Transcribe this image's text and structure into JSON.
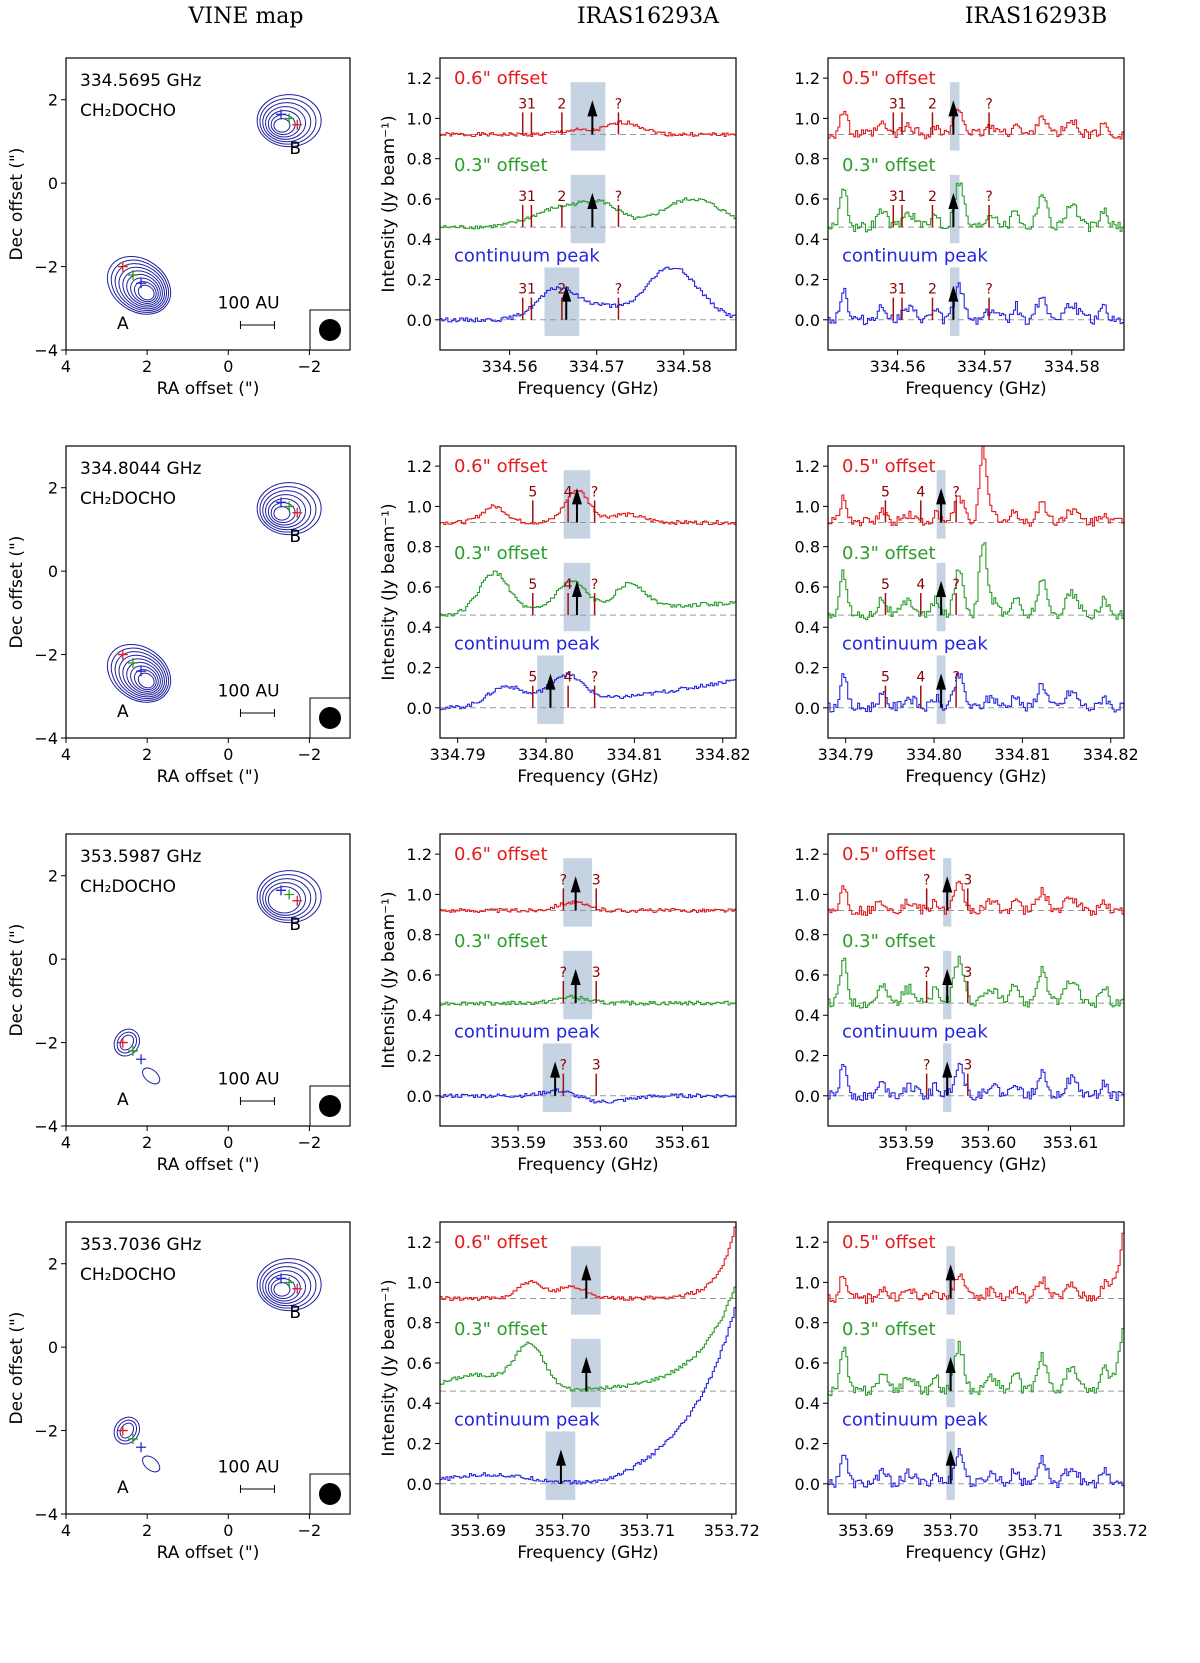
{
  "columns": [
    "VINE map",
    "IRAS16293A",
    "IRAS16293B"
  ],
  "colors": {
    "red": "#e41a1c",
    "green": "#2a9d2a",
    "blue": "#2626e0",
    "contour": "#2020a0",
    "shade": "#c6d3e3",
    "mark": "#a01010"
  },
  "labels": {
    "ra": "RA offset (\")",
    "dec": "Dec offset (\")",
    "freq": "Frequency (GHz)",
    "intensity": "Intensity (Jy beam⁻¹)",
    "offsetA": "0.6\" offset",
    "offsetB": "0.5\" offset",
    "offset3": "0.3\" offset",
    "cont": "continuum peak",
    "scale": "100 AU",
    "srcA": "A",
    "srcB": "B",
    "molecule": "CH₂DOCHO"
  },
  "chart_data": [
    {
      "type": "line",
      "row": 0,
      "freq_label": "334.5695 GHz",
      "map": {
        "xlim": [
          4,
          -3
        ],
        "ylim": [
          -4,
          3
        ],
        "xticks": [
          "4",
          "2",
          "0",
          "−2"
        ],
        "yticks": [
          "2",
          "0",
          "−2",
          "−4"
        ]
      },
      "xlim": [
        334.552,
        334.586
      ],
      "xticks": [
        334.56,
        334.57,
        334.58
      ],
      "xticklabels": [
        "334.56",
        "334.57",
        "334.58"
      ],
      "ylim": [
        -0.15,
        1.3
      ],
      "yticks": [
        "0.0",
        "0.2",
        "0.4",
        "0.6",
        "0.8",
        "1.0",
        "1.2"
      ],
      "baselines": [
        0.92,
        0.46,
        0.0
      ],
      "A": {
        "shade": [
          [
            334.567,
            334.571
          ],
          [
            334.567,
            334.571
          ],
          [
            334.564,
            334.568
          ]
        ],
        "arrow": [
          334.5695,
          334.5695,
          334.5665
        ],
        "marks": [
          {
            "f": 334.5615,
            "l": "3"
          },
          {
            "f": 334.5625,
            "l": "1"
          },
          {
            "f": 334.566,
            "l": "2"
          },
          {
            "f": 334.5725,
            "l": "?"
          }
        ]
      },
      "B": {
        "shade": [
          [
            334.566,
            334.5671
          ],
          [
            334.566,
            334.5671
          ],
          [
            334.566,
            334.5671
          ]
        ],
        "arrow": [
          334.5664,
          334.5664,
          334.5664
        ],
        "marks": [
          {
            "f": 334.5595,
            "l": "3"
          },
          {
            "f": 334.5605,
            "l": "1"
          },
          {
            "f": 334.564,
            "l": "2"
          },
          {
            "f": 334.5705,
            "l": "?"
          }
        ]
      }
    },
    {
      "type": "line",
      "row": 1,
      "freq_label": "334.8044 GHz",
      "map": {
        "xlim": [
          4,
          -3
        ],
        "ylim": [
          -4,
          3
        ],
        "xticks": [
          "4",
          "2",
          "0",
          "−2"
        ],
        "yticks": [
          "2",
          "0",
          "−2",
          "−4"
        ]
      },
      "xlim": [
        334.788,
        334.8215
      ],
      "xticks": [
        334.79,
        334.8,
        334.81,
        334.82
      ],
      "xticklabels": [
        "334.79",
        "334.80",
        "334.81",
        "334.82"
      ],
      "ylim": [
        -0.15,
        1.3
      ],
      "yticks": [
        "0.0",
        "0.2",
        "0.4",
        "0.6",
        "0.8",
        "1.0",
        "1.2"
      ],
      "baselines": [
        0.92,
        0.46,
        0.0
      ],
      "A": {
        "shade": [
          [
            334.802,
            334.805
          ],
          [
            334.802,
            334.805
          ],
          [
            334.799,
            334.802
          ]
        ],
        "arrow": [
          334.8035,
          334.8035,
          334.8005
        ],
        "marks": [
          {
            "f": 334.7985,
            "l": "5"
          },
          {
            "f": 334.8025,
            "l": "4"
          },
          {
            "f": 334.8055,
            "l": "?"
          }
        ]
      },
      "B": {
        "shade": [
          [
            334.8003,
            334.8013
          ],
          [
            334.8003,
            334.8013
          ],
          [
            334.8003,
            334.8013
          ]
        ],
        "arrow": [
          334.8008,
          334.8008,
          334.8008
        ],
        "marks": [
          {
            "f": 334.7945,
            "l": "5"
          },
          {
            "f": 334.7985,
            "l": "4"
          },
          {
            "f": 334.8025,
            "l": "?"
          }
        ]
      }
    },
    {
      "type": "line",
      "row": 2,
      "freq_label": "353.5987 GHz",
      "map": {
        "xlim": [
          4,
          -3
        ],
        "ylim": [
          -4,
          3
        ],
        "xticks": [
          "4",
          "2",
          "0",
          "−2"
        ],
        "yticks": [
          "2",
          "0",
          "−2",
          "−4"
        ]
      },
      "xlim": [
        353.5805,
        353.6165
      ],
      "xticks": [
        353.59,
        353.6,
        353.61
      ],
      "xticklabels": [
        "353.59",
        "353.60",
        "353.61"
      ],
      "ylim": [
        -0.15,
        1.3
      ],
      "yticks": [
        "0.0",
        "0.2",
        "0.4",
        "0.6",
        "0.8",
        "1.0",
        "1.2"
      ],
      "baselines": [
        0.92,
        0.46,
        0.0
      ],
      "A": {
        "shade": [
          [
            353.5955,
            353.599
          ],
          [
            353.5955,
            353.599
          ],
          [
            353.593,
            353.5965
          ]
        ],
        "arrow": [
          353.597,
          353.597,
          353.5945
        ],
        "marks": [
          {
            "f": 353.5955,
            "l": "?"
          },
          {
            "f": 353.5995,
            "l": "3"
          }
        ]
      },
      "B": {
        "shade": [
          [
            353.5945,
            353.5955
          ],
          [
            353.5945,
            353.5955
          ],
          [
            353.5945,
            353.5955
          ]
        ],
        "arrow": [
          353.595,
          353.595,
          353.595
        ],
        "marks": [
          {
            "f": 353.5925,
            "l": "?"
          },
          {
            "f": 353.5975,
            "l": "3"
          }
        ]
      }
    },
    {
      "type": "line",
      "row": 3,
      "freq_label": "353.7036 GHz",
      "map": {
        "xlim": [
          4,
          -3
        ],
        "ylim": [
          -4,
          3
        ],
        "xticks": [
          "4",
          "2",
          "0",
          "−2"
        ],
        "yticks": [
          "2",
          "0",
          "−2",
          "−4"
        ]
      },
      "xlim": [
        353.6855,
        353.7205
      ],
      "xticks": [
        353.69,
        353.7,
        353.71,
        353.72
      ],
      "xticklabels": [
        "353.69",
        "353.70",
        "353.71",
        "353.72"
      ],
      "ylim": [
        -0.15,
        1.3
      ],
      "yticks": [
        "0.0",
        "0.2",
        "0.4",
        "0.6",
        "0.8",
        "1.0",
        "1.2"
      ],
      "baselines": [
        0.92,
        0.46,
        0.0
      ],
      "A": {
        "shade": [
          [
            353.701,
            353.7045
          ],
          [
            353.701,
            353.7045
          ],
          [
            353.698,
            353.7015
          ]
        ],
        "arrow": [
          353.7028,
          353.7028,
          353.6998
        ],
        "marks": []
      },
      "B": {
        "shade": [
          [
            353.6995,
            353.7005
          ],
          [
            353.6995,
            353.7005
          ],
          [
            353.6995,
            353.7005
          ]
        ],
        "arrow": [
          353.7,
          353.7,
          353.7
        ],
        "marks": []
      }
    }
  ]
}
